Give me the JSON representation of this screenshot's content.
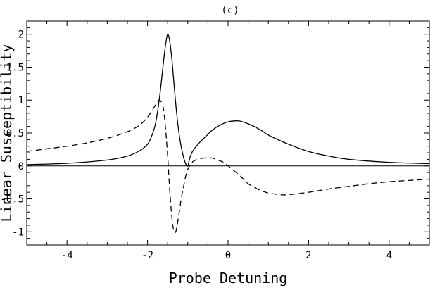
{
  "chart_data": {
    "type": "line",
    "title": "(c)",
    "xlabel": "Probe Detuning",
    "ylabel": "Linear Susceptibility",
    "xlim": [
      -5,
      5
    ],
    "ylim": [
      -1.2,
      2.2
    ],
    "xticks": [
      -4,
      -2,
      0,
      2,
      4
    ],
    "xtick_labels": [
      "-4",
      "-2",
      "0",
      "2",
      "4"
    ],
    "yticks": [
      -1,
      -0.5,
      0,
      0.5,
      1,
      1.5,
      2
    ],
    "ytick_labels": [
      "-1",
      "-0.5",
      "0",
      "0.5",
      "1",
      "1.5",
      "2"
    ],
    "grid": false,
    "legend": "none",
    "series": [
      {
        "style": "solid",
        "x": [
          -5.0,
          -4.0,
          -3.0,
          -2.5,
          -2.2,
          -2.0,
          -1.9,
          -1.8,
          -1.7,
          -1.6,
          -1.55,
          -1.5,
          -1.45,
          -1.4,
          -1.35,
          -1.3,
          -1.25,
          -1.2,
          -1.15,
          -1.1,
          -1.05,
          -1.0,
          -0.95,
          -0.9,
          -0.85,
          -0.8,
          -0.7,
          -0.6,
          -0.5,
          -0.4,
          -0.2,
          0.0,
          0.2,
          0.3,
          0.5,
          0.8,
          1.0,
          1.5,
          2.0,
          2.5,
          3.0,
          4.0,
          5.0
        ],
        "y": [
          0.02,
          0.04,
          0.09,
          0.15,
          0.23,
          0.33,
          0.45,
          0.65,
          1.05,
          1.6,
          1.85,
          2.0,
          1.9,
          1.65,
          1.3,
          0.95,
          0.65,
          0.42,
          0.25,
          0.12,
          0.03,
          0.0,
          0.12,
          0.2,
          0.25,
          0.29,
          0.36,
          0.42,
          0.48,
          0.54,
          0.62,
          0.67,
          0.685,
          0.68,
          0.64,
          0.55,
          0.47,
          0.33,
          0.22,
          0.15,
          0.1,
          0.055,
          0.035
        ]
      },
      {
        "style": "dashed",
        "x": [
          -5.0,
          -4.5,
          -4.0,
          -3.5,
          -3.0,
          -2.5,
          -2.2,
          -2.0,
          -1.9,
          -1.8,
          -1.75,
          -1.7,
          -1.65,
          -1.6,
          -1.55,
          -1.5,
          -1.45,
          -1.4,
          -1.35,
          -1.3,
          -1.25,
          -1.2,
          -1.15,
          -1.1,
          -1.05,
          -1.0,
          -0.9,
          -0.8,
          -0.6,
          -0.4,
          -0.3,
          -0.1,
          0.1,
          0.3,
          0.5,
          0.8,
          1.0,
          1.2,
          1.4,
          1.6,
          2.0,
          2.5,
          3.0,
          3.5,
          4.0,
          4.5,
          5.0
        ],
        "y": [
          0.22,
          0.26,
          0.3,
          0.35,
          0.42,
          0.52,
          0.62,
          0.74,
          0.83,
          0.93,
          0.98,
          1.0,
          0.96,
          0.85,
          0.55,
          0.15,
          -0.35,
          -0.75,
          -0.98,
          -1.0,
          -0.85,
          -0.65,
          -0.45,
          -0.3,
          -0.15,
          -0.05,
          0.05,
          0.09,
          0.12,
          0.12,
          0.1,
          0.05,
          -0.05,
          -0.15,
          -0.27,
          -0.37,
          -0.41,
          -0.43,
          -0.44,
          -0.43,
          -0.4,
          -0.35,
          -0.31,
          -0.27,
          -0.24,
          -0.22,
          -0.2
        ]
      }
    ]
  }
}
